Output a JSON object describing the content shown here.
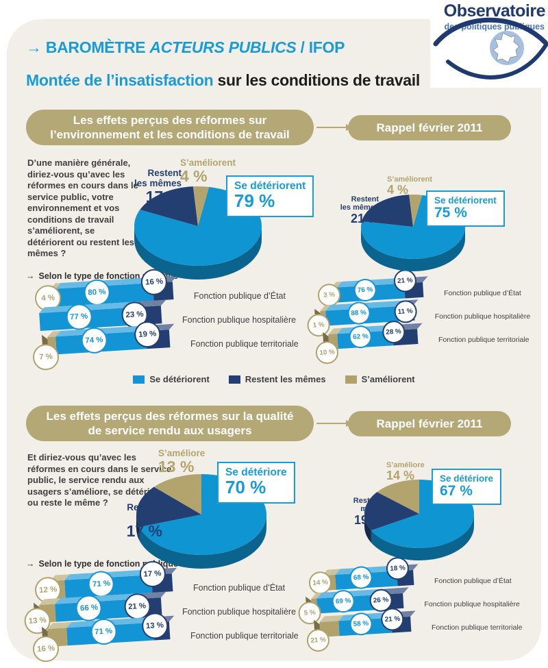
{
  "logo": {
    "title": "Observatoire",
    "subtitle": "des politiques publiques"
  },
  "header": {
    "arrow": "→",
    "kicker_word": "BAROMÈTRE",
    "kicker_italic": "ACTEURS PUBLICS",
    "kicker_suffix": "/ IFOP",
    "title_highlight": "Montée de l’insatisfaction",
    "title_rest": "sur les conditions de travail"
  },
  "sections": [
    {
      "banner": "Les effets perçus des réformes sur l’environnement et les conditions de travail",
      "recall": "Rappel février 2011",
      "question": "D’une manière générale, diriez-vous qu’avec les réformes en cours dans le service public, votre environnement et vos conditions de travail s’améliorent, se détériorent ou restent les mêmes ?",
      "breakdown_label": "Selon le type de fonction publique",
      "pies": {
        "current": {
          "improve_label": "S’améliorent",
          "improve_value": "4 %",
          "same_label": "Restent les mêmes",
          "same_value": "17 %",
          "worse_label": "Se détériorent",
          "worse_value": "79 %"
        },
        "recall": {
          "improve_label": "S’améliorent",
          "improve_value": "4 %",
          "same_label": "Restent les mêmes",
          "same_value": "21 %",
          "worse_label": "Se détériorent",
          "worse_value": "75 %"
        }
      }
    },
    {
      "banner": "Les effets perçus des réformes sur la qualité de service rendu aux usagers",
      "recall": "Rappel février 2011",
      "question": "Et diriez-vous qu’avec les réformes en cours dans le service public, le service rendu aux usagers s’améliore, se détériore ou reste le même ?",
      "breakdown_label": "Selon le type de fonction publique",
      "pies": {
        "current": {
          "improve_label": "S’améliore",
          "improve_value": "13 %",
          "same_label": "Reste le même",
          "same_value": "17 %",
          "worse_label": "Se détériore",
          "worse_value": "70 %"
        },
        "recall": {
          "improve_label": "S’améliore",
          "improve_value": "14 %",
          "same_label": "Reste le même",
          "same_value": "19 %",
          "worse_label": "Se détériore",
          "worse_value": "67 %"
        }
      }
    }
  ],
  "legend": {
    "items": [
      {
        "label": "Se détériorent",
        "color": "#1395d5"
      },
      {
        "label": "Restent les mêmes",
        "color": "#233f72"
      },
      {
        "label": "S’améliorent",
        "color": "#b1a26b"
      }
    ]
  },
  "chart_data": [
    {
      "type": "pie",
      "title": "Les effets perçus des réformes sur l’environnement et les conditions de travail",
      "labels": [
        "Se détériorent",
        "Restent les mêmes",
        "S’améliorent"
      ],
      "values": [
        79,
        17,
        4
      ],
      "colors": [
        "#1095d3",
        "#233f72",
        "#b3a46e"
      ],
      "legend_position": "none"
    },
    {
      "type": "pie",
      "title": "Rappel février 2011",
      "labels": [
        "Se détériorent",
        "Restent les mêmes",
        "S’améliorent"
      ],
      "values": [
        75,
        21,
        4
      ],
      "colors": [
        "#1095d3",
        "#233f72",
        "#b3a46e"
      ],
      "legend_position": "none"
    },
    {
      "type": "bar",
      "title": "Selon le type de fonction publique",
      "categories": [
        "Fonction publique d’État",
        "Fonction publique hospitalière",
        "Fonction publique territoriale"
      ],
      "series": [
        {
          "name": "Se détériorent",
          "color": "#1395d5",
          "values": [
            80,
            77,
            74
          ]
        },
        {
          "name": "Restent les mêmes",
          "color": "#233f72",
          "values": [
            16,
            23,
            19
          ]
        },
        {
          "name": "S’améliorent",
          "color": "#b1a26b",
          "values": [
            4,
            0,
            7
          ]
        }
      ],
      "display_order": [
        2,
        0,
        1
      ],
      "xlim": [
        0,
        100
      ]
    },
    {
      "type": "bar",
      "title": "Rappel février 2011 — Selon le type de fonction publique",
      "categories": [
        "Fonction publique d’État",
        "Fonction publique hospitalière",
        "Fonction publique territoriale"
      ],
      "series": [
        {
          "name": "Se détériorent",
          "color": "#1395d5",
          "values": [
            76,
            88,
            62
          ]
        },
        {
          "name": "Restent les mêmes",
          "color": "#233f72",
          "values": [
            21,
            11,
            28
          ]
        },
        {
          "name": "S’améliorent",
          "color": "#b1a26b",
          "values": [
            3,
            1,
            10
          ]
        }
      ],
      "display_order": [
        2,
        0,
        1
      ],
      "xlim": [
        0,
        100
      ]
    },
    {
      "type": "pie",
      "title": "Les effets perçus des réformes sur la qualité de service rendu aux usagers",
      "labels": [
        "Se détériore",
        "Reste le même",
        "S’améliore"
      ],
      "values": [
        70,
        17,
        13
      ],
      "colors": [
        "#1095d3",
        "#233f72",
        "#b3a46e"
      ],
      "legend_position": "none"
    },
    {
      "type": "pie",
      "title": "Rappel février 2011",
      "labels": [
        "Se détériore",
        "Reste le même",
        "S’améliore"
      ],
      "values": [
        67,
        19,
        14
      ],
      "colors": [
        "#1095d3",
        "#233f72",
        "#b3a46e"
      ],
      "legend_position": "none"
    },
    {
      "type": "bar",
      "title": "Selon le type de fonction publique",
      "categories": [
        "Fonction publique d’État",
        "Fonction publique hospitalière",
        "Fonction publique territoriale"
      ],
      "series": [
        {
          "name": "Se détériore",
          "color": "#1395d5",
          "values": [
            71,
            66,
            71
          ]
        },
        {
          "name": "Reste le même",
          "color": "#233f72",
          "values": [
            17,
            21,
            13
          ]
        },
        {
          "name": "S’améliore",
          "color": "#b1a26b",
          "values": [
            12,
            13,
            16
          ]
        }
      ],
      "display_order": [
        2,
        0,
        1
      ],
      "xlim": [
        0,
        100
      ]
    },
    {
      "type": "bar",
      "title": "Rappel février 2011 — Selon le type de fonction publique",
      "categories": [
        "Fonction publique d’État",
        "Fonction publique hospitalière",
        "Fonction publique territoriale"
      ],
      "series": [
        {
          "name": "Se détériore",
          "color": "#1395d5",
          "values": [
            68,
            69,
            58
          ]
        },
        {
          "name": "Reste le même",
          "color": "#233f72",
          "values": [
            18,
            26,
            21
          ]
        },
        {
          "name": "S’améliore",
          "color": "#b1a26b",
          "values": [
            14,
            5,
            21
          ]
        }
      ],
      "display_order": [
        2,
        0,
        1
      ],
      "xlim": [
        0,
        100
      ]
    }
  ]
}
